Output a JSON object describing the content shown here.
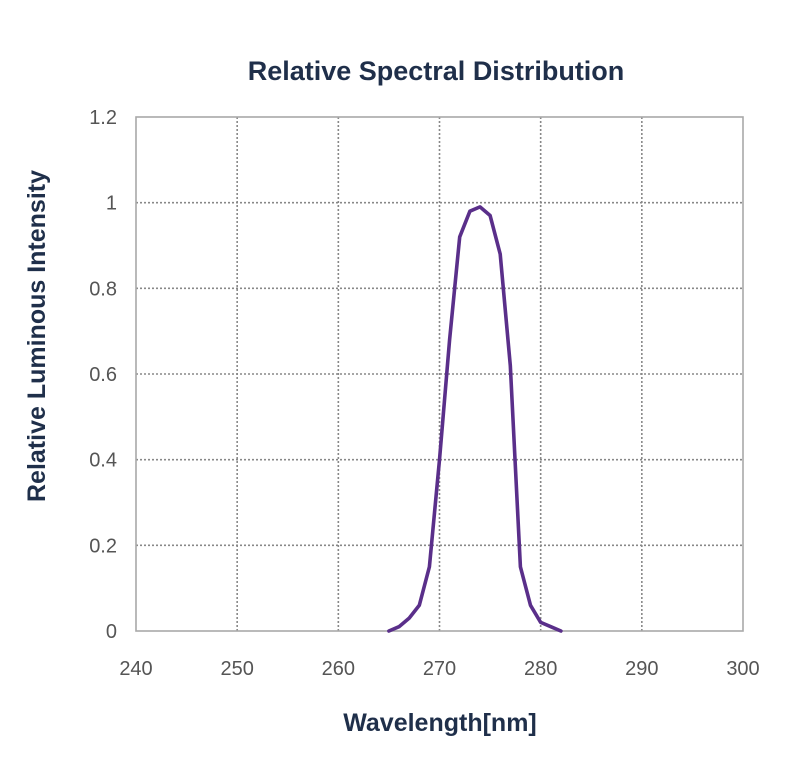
{
  "chart_data": {
    "type": "line",
    "title": "Relative Spectral Distribution",
    "xlabel": "Wavelength[nm]",
    "ylabel": "Relative Luminous Intensity",
    "xlim": [
      240,
      300
    ],
    "ylim": [
      0,
      1.2
    ],
    "grid": true,
    "x_ticks": [
      240,
      250,
      260,
      270,
      280,
      290,
      300
    ],
    "x_tick_labels": [
      "240",
      "250",
      "260",
      "270",
      "280",
      "290",
      "300"
    ],
    "y_ticks": [
      0,
      0.2,
      0.4,
      0.6,
      0.8,
      1.0,
      1.2
    ],
    "y_tick_labels": [
      "0",
      "0.2",
      "0.4",
      "0.6",
      "0.8",
      "1",
      "1.2"
    ],
    "series": [
      {
        "name": "Relative Spectral Distribution",
        "color": "#5a2f8a",
        "x": [
          265,
          266,
          267,
          268,
          269,
          270,
          271,
          272,
          273,
          274,
          275,
          276,
          277,
          278,
          279,
          280,
          281,
          282
        ],
        "y": [
          0.0,
          0.01,
          0.03,
          0.06,
          0.15,
          0.4,
          0.68,
          0.92,
          0.98,
          0.99,
          0.97,
          0.88,
          0.62,
          0.15,
          0.06,
          0.02,
          0.01,
          0.0
        ]
      }
    ]
  }
}
